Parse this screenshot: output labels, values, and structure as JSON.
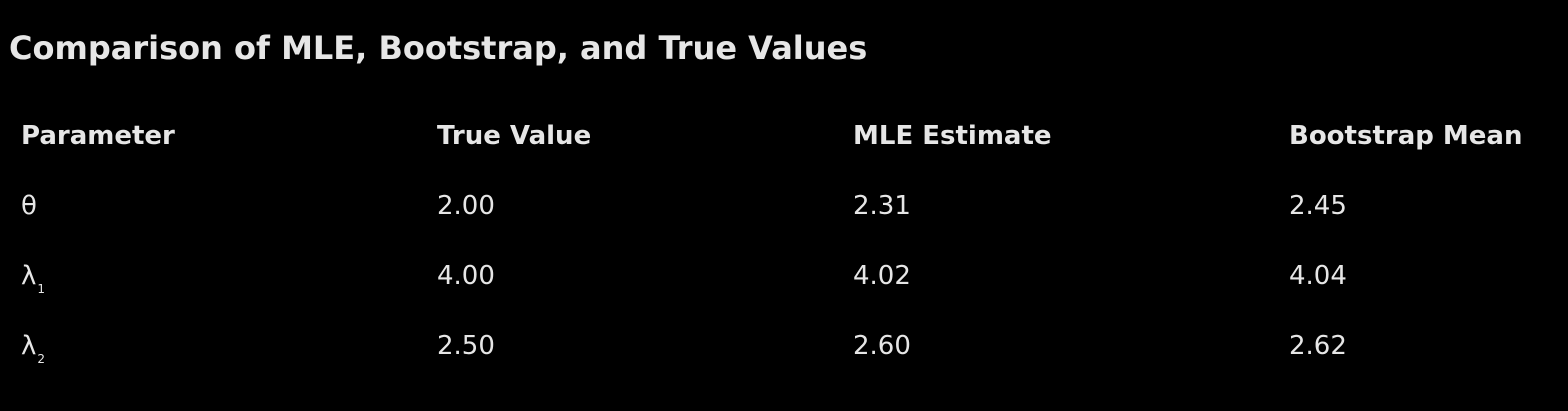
{
  "title": "Comparison of MLE, Bootstrap, and True Values",
  "table": {
    "headers": [
      "Parameter",
      "True Value",
      "MLE Estimate",
      "Bootstrap Mean"
    ],
    "rows": [
      {
        "param": "θ",
        "param_sub": "",
        "true_value": "2.00",
        "mle": "2.31",
        "bootstrap": "2.45"
      },
      {
        "param": "λ",
        "param_sub": "1",
        "true_value": "4.00",
        "mle": "4.02",
        "bootstrap": "4.04"
      },
      {
        "param": "λ",
        "param_sub": "2",
        "true_value": "2.50",
        "mle": "2.60",
        "bootstrap": "2.62"
      }
    ]
  },
  "colors": {
    "background": "#000000",
    "text": "#e6e6e6"
  }
}
